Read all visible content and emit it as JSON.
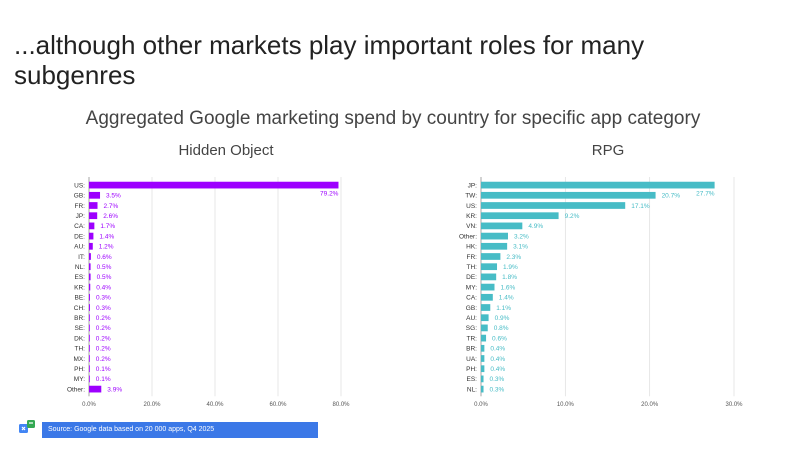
{
  "slide": {
    "title": "...although other markets play important roles for many subgenres",
    "subtitle": "Aggregated Google marketing spend by country for specific app category",
    "source": "Source: Google data based on 20 000 apps, Q4 2025"
  },
  "colors": {
    "hidden_object": "#9d00ff",
    "rpg": "#47bcc6"
  },
  "chart_data": [
    {
      "type": "bar",
      "orientation": "horizontal",
      "title": "Hidden Object",
      "categories": [
        "US:",
        "GB:",
        "FR:",
        "JP:",
        "CA:",
        "DE:",
        "AU:",
        "IT:",
        "NL:",
        "ES:",
        "KR:",
        "BE:",
        "CH:",
        "BR:",
        "SE:",
        "DK:",
        "TH:",
        "MX:",
        "PH:",
        "MY:",
        "Other:"
      ],
      "values": [
        79.2,
        3.5,
        2.7,
        2.6,
        1.7,
        1.4,
        1.2,
        0.6,
        0.5,
        0.5,
        0.4,
        0.3,
        0.3,
        0.2,
        0.2,
        0.2,
        0.2,
        0.2,
        0.1,
        0.1,
        3.9
      ],
      "labels": [
        "79.2%",
        "3.5%",
        "2.7%",
        "2.6%",
        "1.7%",
        "1.4%",
        "1.2%",
        "0.6%",
        "0.5%",
        "0.5%",
        "0.4%",
        "0.3%",
        "0.3%",
        "0.2%",
        "0.2%",
        "0.2%",
        "0.2%",
        "0.2%",
        "0.1%",
        "0.1%",
        "3.9%"
      ],
      "xlim": [
        0,
        80
      ],
      "xticks": [
        0,
        20,
        40,
        60,
        80
      ],
      "xtick_labels": [
        "0.0%",
        "20.0%",
        "40.0%",
        "60.0%",
        "80.0%"
      ],
      "grid": true
    },
    {
      "type": "bar",
      "orientation": "horizontal",
      "title": "RPG",
      "categories": [
        "JP:",
        "TW:",
        "US:",
        "KR:",
        "VN:",
        "Other:",
        "HK:",
        "FR:",
        "TH:",
        "DE:",
        "MY:",
        "CA:",
        "GB:",
        "AU:",
        "SG:",
        "TR:",
        "BR:",
        "UA:",
        "PH:",
        "ES:",
        "NL:"
      ],
      "values": [
        27.7,
        20.7,
        17.1,
        9.2,
        4.9,
        3.2,
        3.1,
        2.3,
        1.9,
        1.8,
        1.6,
        1.4,
        1.1,
        0.9,
        0.8,
        0.6,
        0.4,
        0.4,
        0.4,
        0.3,
        0.3
      ],
      "labels": [
        "27.7%",
        "20.7%",
        "17.1%",
        "9.2%",
        "4.9%",
        "3.2%",
        "3.1%",
        "2.3%",
        "1.9%",
        "1.8%",
        "1.6%",
        "1.4%",
        "1.1%",
        "0.9%",
        "0.8%",
        "0.6%",
        "0.4%",
        "0.4%",
        "0.4%",
        "0.3%",
        "0.3%"
      ],
      "xlim": [
        0,
        30
      ],
      "xticks": [
        0,
        10,
        20,
        30
      ],
      "xtick_labels": [
        "0.0%",
        "10.0%",
        "20.0%",
        "30.0%"
      ],
      "grid": true
    }
  ]
}
